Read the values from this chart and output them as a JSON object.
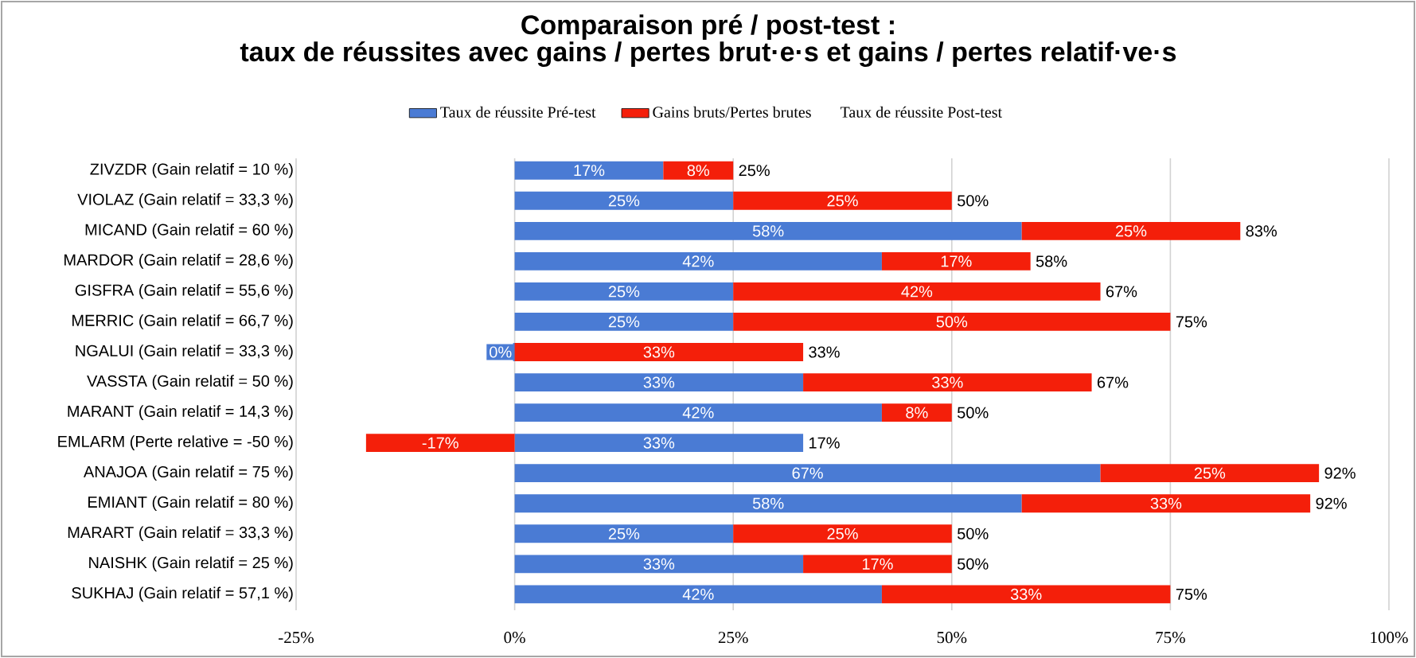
{
  "chart_data": {
    "type": "bar",
    "orientation": "horizontal",
    "stacked": true,
    "title": "Comparaison pré / post-test :",
    "subtitle": "taux de réussites avec gains / pertes brut·e·s et gains / pertes relatif·ve·s",
    "categories": [
      "ZIVZDR (Gain relatif = 10 %)",
      "VIOLAZ (Gain relatif = 33,3 %)",
      "MICAND (Gain relatif = 60 %)",
      "MARDOR (Gain relatif = 28,6 %)",
      "GISFRA (Gain relatif = 55,6 %)",
      "MERRIC (Gain relatif = 66,7 %)",
      "NGALUI (Gain relatif = 33,3 %)",
      "VASSTA (Gain relatif = 50 %)",
      "MARANT (Gain relatif = 14,3 %)",
      "EMLARM (Perte relative = -50 %)",
      "ANAJOA (Gain relatif = 75 %)",
      "EMIANT (Gain relatif = 80 %)",
      "MARART (Gain relatif = 33,3 %)",
      "NAISHK (Gain relatif = 25 %)",
      "SUKHAJ (Gain relatif = 57,1 %)"
    ],
    "series": [
      {
        "name": "Taux de réussite Pré-test",
        "color": "#4a7bd4",
        "values": [
          17,
          25,
          58,
          42,
          25,
          25,
          0,
          33,
          42,
          33,
          67,
          58,
          25,
          33,
          42
        ],
        "value_labels": [
          "17%",
          "25%",
          "58%",
          "42%",
          "25%",
          "25%",
          "0%",
          "33%",
          "42%",
          "33%",
          "67%",
          "58%",
          "25%",
          "33%",
          "42%"
        ]
      },
      {
        "name": "Gains bruts/Pertes brutes",
        "color": "#f41f0a",
        "values": [
          8,
          25,
          25,
          17,
          42,
          50,
          33,
          33,
          8,
          -17,
          25,
          33,
          25,
          17,
          33
        ],
        "value_labels": [
          "8%",
          "25%",
          "25%",
          "17%",
          "42%",
          "50%",
          "33%",
          "33%",
          "8%",
          "-17%",
          "25%",
          "33%",
          "25%",
          "17%",
          "33%"
        ]
      },
      {
        "name": "Taux de réussite Post-test",
        "values": [
          null,
          null,
          null,
          null,
          null,
          null,
          null,
          null,
          null,
          null,
          null,
          null,
          null,
          null,
          null
        ]
      }
    ],
    "totals": [
      "25%",
      "50%",
      "83%",
      "58%",
      "67%",
      "75%",
      "33%",
      "67%",
      "50%",
      "17%",
      "92%",
      "92%",
      "50%",
      "50%",
      "75%"
    ],
    "xlim": [
      -25,
      100
    ],
    "xticks": [
      {
        "value": -25,
        "label": "-25%"
      },
      {
        "value": 0,
        "label": "0%"
      },
      {
        "value": 25,
        "label": "25%"
      },
      {
        "value": 50,
        "label": "50%"
      },
      {
        "value": 75,
        "label": "75%"
      },
      {
        "value": 100,
        "label": "100%"
      }
    ],
    "grid": "x",
    "legend": "top"
  }
}
